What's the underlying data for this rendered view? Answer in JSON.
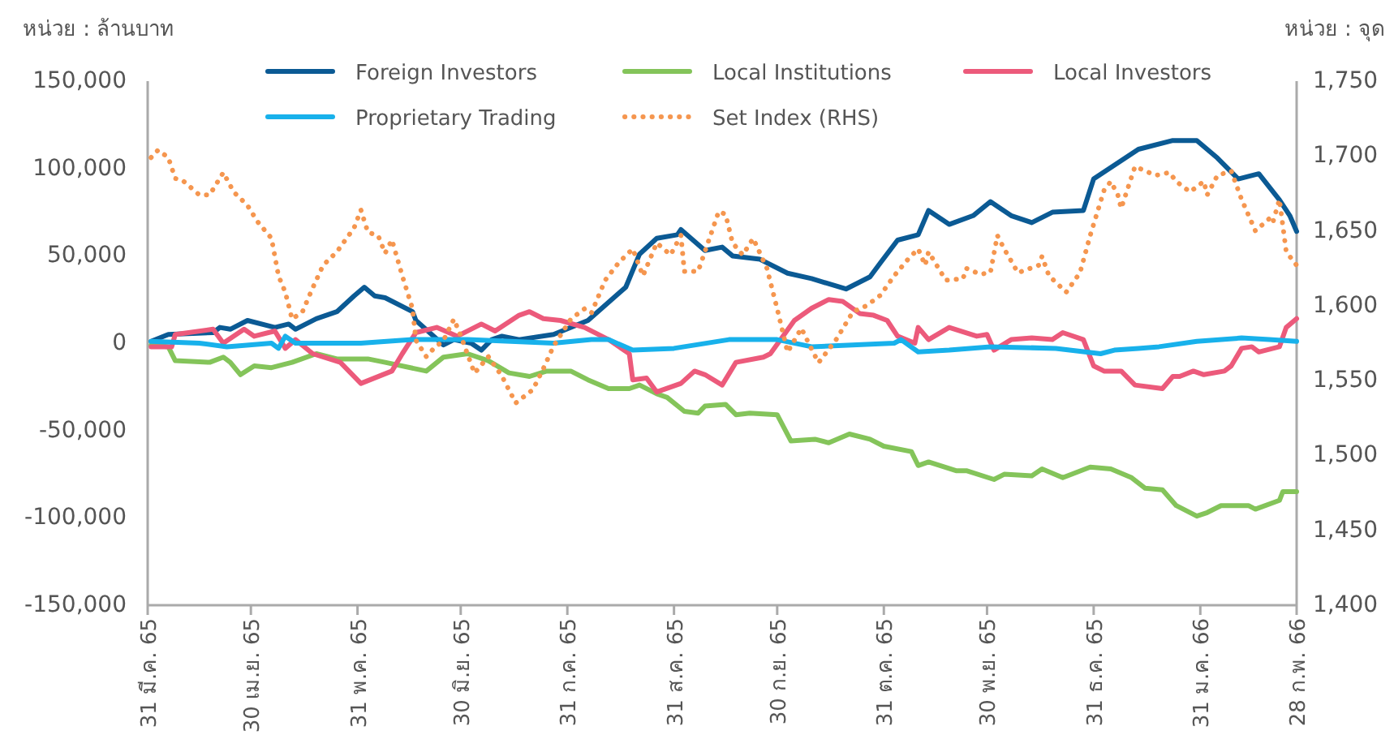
{
  "chart_data": {
    "type": "line",
    "ylabel": "หน่วย : ล้านบาท",
    "y2label": "หน่วย : จุด",
    "legend": "top",
    "marker": "none",
    "grid": false,
    "xlim": [
      "2565-03-31",
      "2566-02-28"
    ],
    "xticks": [
      {
        "value": "2565-03-31",
        "label": "31 มี.ค. 65"
      },
      {
        "value": "2565-04-30",
        "label": "30 เม.ย. 65"
      },
      {
        "value": "2565-05-31",
        "label": "31 พ.ค. 65"
      },
      {
        "value": "2565-06-30",
        "label": "30 มิ.ย. 65"
      },
      {
        "value": "2565-07-31",
        "label": "31 ก.ค. 65"
      },
      {
        "value": "2565-08-31",
        "label": "31 ส.ค. 65"
      },
      {
        "value": "2565-09-30",
        "label": "30 ก.ย. 65"
      },
      {
        "value": "2565-10-31",
        "label": "31 ต.ค. 65"
      },
      {
        "value": "2565-11-30",
        "label": "30 พ.ย. 65"
      },
      {
        "value": "2565-12-31",
        "label": "31 ธ.ค. 65"
      },
      {
        "value": "2566-01-31",
        "label": "31 ม.ค. 66"
      },
      {
        "value": "2566-02-28",
        "label": "28 ก.พ. 66"
      }
    ],
    "ylim": [
      -150000,
      150000
    ],
    "yticks": [
      {
        "value": -150000,
        "label": "-150,000"
      },
      {
        "value": -100000,
        "label": "-100,000"
      },
      {
        "value": -50000,
        "label": "-50,000"
      },
      {
        "value": 0,
        "label": "0"
      },
      {
        "value": 50000,
        "label": "50,000"
      },
      {
        "value": 100000,
        "label": "100,000"
      },
      {
        "value": 150000,
        "label": "150,000"
      }
    ],
    "y2lim": [
      1400,
      1750
    ],
    "y2ticks": [
      {
        "value": 1400,
        "label": "1,400"
      },
      {
        "value": 1450,
        "label": "1,450"
      },
      {
        "value": 1500,
        "label": "1,500"
      },
      {
        "value": 1550,
        "label": "1,550"
      },
      {
        "value": 1600,
        "label": "1,600"
      },
      {
        "value": 1650,
        "label": "1,650"
      },
      {
        "value": 1700,
        "label": "1,700"
      },
      {
        "value": 1750,
        "label": "1,750"
      }
    ],
    "series": [
      {
        "name": "Foreign Investors",
        "color": "#0b5a94",
        "line_style": "solid",
        "x": [
          "2565-04-01",
          "2565-04-06",
          "2565-04-19",
          "2565-04-21",
          "2565-04-24",
          "2565-04-29",
          "2565-05-07",
          "2565-05-11",
          "2565-05-13",
          "2565-05-19",
          "2565-05-25",
          "2565-05-30",
          "2565-06-02",
          "2565-06-05",
          "2565-06-08",
          "2565-06-16",
          "2565-06-17",
          "2565-06-25",
          "2565-06-28",
          "2565-07-03",
          "2565-07-06",
          "2565-07-09",
          "2565-07-12",
          "2565-07-17",
          "2565-07-27",
          "2565-08-06",
          "2565-08-17",
          "2565-08-21",
          "2565-08-26",
          "2565-09-01",
          "2565-09-02",
          "2565-09-09",
          "2565-09-14",
          "2565-09-17",
          "2565-09-25",
          "2565-10-03",
          "2565-10-10",
          "2565-10-20",
          "2565-10-27",
          "2565-10-30",
          "2565-11-04",
          "2565-11-10",
          "2565-11-13",
          "2565-11-19",
          "2565-11-26",
          "2565-12-01",
          "2565-12-07",
          "2565-12-13",
          "2565-12-19",
          "2565-12-28",
          "2565-12-31",
          "2566-01-13",
          "2566-01-23",
          "2566-01-30",
          "2566-02-05",
          "2566-02-11",
          "2566-02-17",
          "2566-02-23",
          "2566-02-26",
          "2566-02-28"
        ],
        "values": [
          1000,
          5000,
          6000,
          9000,
          8000,
          13000,
          9000,
          11000,
          8000,
          14000,
          18000,
          27000,
          32000,
          27000,
          26000,
          18000,
          13000,
          -1000,
          2000,
          0,
          -4000,
          2000,
          4000,
          2000,
          5000,
          13000,
          32000,
          51000,
          60000,
          62000,
          65000,
          53000,
          55000,
          50000,
          48000,
          40000,
          37000,
          31000,
          38000,
          46000,
          59000,
          62000,
          76000,
          68000,
          73000,
          81000,
          73000,
          69000,
          75000,
          76000,
          94000,
          111000,
          116000,
          116000,
          106000,
          94000,
          97000,
          82000,
          73000,
          64000
        ]
      },
      {
        "name": "Local Institutions",
        "color": "#84c45a",
        "line_style": "solid",
        "x": [
          "2565-04-01",
          "2565-04-06",
          "2565-04-08",
          "2565-04-18",
          "2565-04-22",
          "2565-04-24",
          "2565-04-27",
          "2565-05-01",
          "2565-05-06",
          "2565-05-12",
          "2565-05-19",
          "2565-05-25",
          "2565-06-03",
          "2565-06-08",
          "2565-06-20",
          "2565-06-25",
          "2565-07-02",
          "2565-07-08",
          "2565-07-14",
          "2565-07-20",
          "2565-07-25",
          "2565-08-01",
          "2565-08-06",
          "2565-08-12",
          "2565-08-18",
          "2565-08-21",
          "2565-08-26",
          "2565-08-29",
          "2565-09-03",
          "2565-09-07",
          "2565-09-09",
          "2565-09-15",
          "2565-09-18",
          "2565-09-22",
          "2565-09-30",
          "2565-10-04",
          "2565-10-11",
          "2565-10-15",
          "2565-10-21",
          "2565-10-27",
          "2565-10-31",
          "2565-11-08",
          "2565-11-10",
          "2565-11-13",
          "2565-11-21",
          "2565-11-24",
          "2565-12-02",
          "2565-12-05",
          "2565-12-13",
          "2565-12-16",
          "2565-12-22",
          "2565-12-30",
          "2566-01-05",
          "2566-01-11",
          "2566-01-15",
          "2566-01-20",
          "2566-01-24",
          "2566-01-30",
          "2566-02-02",
          "2566-02-06",
          "2566-02-14",
          "2566-02-16",
          "2566-02-23",
          "2566-02-24",
          "2566-02-28"
        ],
        "values": [
          -1000,
          -2000,
          -10000,
          -11000,
          -8000,
          -11000,
          -18000,
          -13000,
          -14000,
          -11000,
          -6000,
          -9000,
          -9000,
          -11000,
          -16000,
          -8000,
          -6000,
          -10000,
          -17000,
          -19000,
          -16000,
          -16000,
          -21000,
          -26000,
          -26000,
          -24000,
          -29000,
          -31000,
          -39000,
          -40000,
          -36000,
          -35000,
          -41000,
          -40000,
          -41000,
          -56000,
          -55000,
          -57000,
          -52000,
          -55000,
          -59000,
          -62000,
          -70000,
          -68000,
          -73000,
          -73000,
          -78000,
          -75000,
          -76000,
          -72000,
          -77000,
          -71000,
          -72000,
          -77000,
          -83000,
          -84000,
          -93000,
          -99000,
          -97000,
          -93000,
          -93000,
          -95000,
          -90000,
          -85000,
          -85000
        ]
      },
      {
        "name": "Local Investors",
        "color": "#ec5a7b",
        "line_style": "solid",
        "x": [
          "2565-04-01",
          "2565-04-07",
          "2565-04-08",
          "2565-04-19",
          "2565-04-22",
          "2565-04-28",
          "2565-05-01",
          "2565-05-07",
          "2565-05-10",
          "2565-05-13",
          "2565-05-18",
          "2565-05-26",
          "2565-06-01",
          "2565-06-10",
          "2565-06-13",
          "2565-06-17",
          "2565-06-23",
          "2565-06-29",
          "2565-07-06",
          "2565-07-10",
          "2565-07-17",
          "2565-07-20",
          "2565-07-24",
          "2565-07-29",
          "2565-08-05",
          "2565-08-12",
          "2565-08-18",
          "2565-08-19",
          "2565-08-23",
          "2565-08-26",
          "2565-09-02",
          "2565-09-06",
          "2565-09-09",
          "2565-09-14",
          "2565-09-18",
          "2565-09-26",
          "2565-09-28",
          "2565-10-05",
          "2565-10-10",
          "2565-10-15",
          "2565-10-19",
          "2565-10-24",
          "2565-10-28",
          "2565-11-01",
          "2565-11-04",
          "2565-11-09",
          "2565-11-10",
          "2565-11-13",
          "2565-11-19",
          "2565-11-27",
          "2565-11-30",
          "2565-12-02",
          "2565-12-07",
          "2565-12-13",
          "2565-12-19",
          "2565-12-22",
          "2565-12-28",
          "2565-12-31",
          "2566-01-03",
          "2566-01-08",
          "2566-01-12",
          "2566-01-20",
          "2566-01-23",
          "2566-01-25",
          "2566-01-29",
          "2566-02-01",
          "2566-02-07",
          "2566-02-09",
          "2566-02-12",
          "2566-02-15",
          "2566-02-17",
          "2566-02-23",
          "2566-02-25",
          "2566-02-28"
        ],
        "values": [
          -2000,
          -2000,
          5000,
          8000,
          0,
          8000,
          4000,
          7000,
          -3000,
          2000,
          -6000,
          -11000,
          -23000,
          -16000,
          -6000,
          6000,
          9000,
          4000,
          11000,
          7000,
          16000,
          18000,
          14000,
          13000,
          9000,
          2000,
          -6000,
          -21000,
          -20000,
          -28000,
          -23000,
          -16000,
          -18000,
          -24000,
          -11000,
          -8000,
          -6000,
          13000,
          20000,
          25000,
          24000,
          17000,
          16000,
          13000,
          4000,
          0,
          9000,
          2000,
          9000,
          4000,
          5000,
          -4000,
          2000,
          3000,
          2000,
          6000,
          2000,
          -13000,
          -16000,
          -16000,
          -24000,
          -26000,
          -19000,
          -19000,
          -16000,
          -18000,
          -16000,
          -13000,
          -3000,
          -2000,
          -5000,
          -2000,
          9000,
          14000
        ]
      },
      {
        "name": "Proprietary Trading",
        "color": "#18b1eb",
        "line_style": "solid",
        "x": [
          "2565-04-01",
          "2565-04-15",
          "2565-04-23",
          "2565-05-06",
          "2565-05-08",
          "2565-05-10",
          "2565-05-13",
          "2565-06-01",
          "2565-06-16",
          "2565-07-02",
          "2565-07-27",
          "2565-08-07",
          "2565-08-12",
          "2565-08-19",
          "2565-08-31",
          "2565-09-16",
          "2565-09-30",
          "2565-10-10",
          "2565-11-03",
          "2565-11-05",
          "2565-11-10",
          "2565-11-19",
          "2565-12-01",
          "2565-12-20",
          "2566-01-02",
          "2566-01-06",
          "2566-01-13",
          "2566-01-19",
          "2566-01-30",
          "2566-02-12",
          "2566-02-20",
          "2566-02-28"
        ],
        "values": [
          1000,
          0,
          -2000,
          0,
          -3000,
          4000,
          0,
          0,
          2000,
          2000,
          0,
          2000,
          2000,
          -4000,
          -3000,
          2000,
          2000,
          -2000,
          0,
          2000,
          -5000,
          -4000,
          -2000,
          -3000,
          -6000,
          -4000,
          -3000,
          -2000,
          1000,
          3000,
          2000,
          1000
        ]
      },
      {
        "name": "Set Index (RHS)",
        "color": "#f5964f",
        "line_style": "dotted",
        "axis": "y2",
        "x": [
          "2565-04-01",
          "2565-04-03",
          "2565-04-06",
          "2565-04-08",
          "2565-04-10",
          "2565-04-15",
          "2565-04-18",
          "2565-04-22",
          "2565-04-25",
          "2565-04-29",
          "2565-05-02",
          "2565-05-06",
          "2565-05-08",
          "2565-05-10",
          "2565-05-12",
          "2565-05-15",
          "2565-05-18",
          "2565-05-21",
          "2565-05-25",
          "2565-05-30",
          "2565-06-01",
          "2565-06-03",
          "2565-06-06",
          "2565-06-08",
          "2565-06-10",
          "2565-06-13",
          "2565-06-16",
          "2565-06-17",
          "2565-06-20",
          "2565-06-22",
          "2565-06-25",
          "2565-06-28",
          "2565-06-30",
          "2565-07-04",
          "2565-07-08",
          "2565-07-12",
          "2565-07-16",
          "2565-07-21",
          "2565-07-24",
          "2565-07-27",
          "2565-08-01",
          "2565-08-05",
          "2565-08-07",
          "2565-08-11",
          "2565-08-15",
          "2565-08-19",
          "2565-08-22",
          "2565-08-26",
          "2565-08-30",
          "2565-09-02",
          "2565-09-03",
          "2565-09-07",
          "2565-09-13",
          "2565-09-15",
          "2565-09-17",
          "2565-09-20",
          "2565-09-23",
          "2565-09-27",
          "2565-09-30",
          "2565-10-03",
          "2565-10-07",
          "2565-10-10",
          "2565-10-12",
          "2565-10-17",
          "2565-10-22",
          "2565-10-26",
          "2565-10-30",
          "2565-11-03",
          "2565-11-07",
          "2565-11-10",
          "2565-11-12",
          "2565-11-13",
          "2565-11-18",
          "2565-11-23",
          "2565-11-24",
          "2565-11-28",
          "2565-12-01",
          "2565-12-03",
          "2565-12-05",
          "2565-12-09",
          "2565-12-15",
          "2565-12-16",
          "2565-12-18",
          "2565-12-23",
          "2565-12-27",
          "2565-12-30",
          "2566-01-03",
          "2566-01-05",
          "2566-01-07",
          "2566-01-08",
          "2566-01-12",
          "2566-01-18",
          "2566-01-22",
          "2566-01-24",
          "2566-01-28",
          "2566-02-01",
          "2566-02-02",
          "2566-02-05",
          "2566-02-09",
          "2566-02-12",
          "2566-02-16",
          "2566-02-20",
          "2566-02-21",
          "2566-02-23",
          "2566-02-25",
          "2566-02-28"
        ],
        "values": [
          1699,
          1704,
          1699,
          1685,
          1684,
          1674,
          1674,
          1689,
          1676,
          1667,
          1656,
          1645,
          1620,
          1609,
          1591,
          1596,
          1612,
          1627,
          1636,
          1652,
          1664,
          1649,
          1647,
          1635,
          1644,
          1620,
          1598,
          1577,
          1566,
          1571,
          1577,
          1591,
          1580,
          1555,
          1566,
          1553,
          1535,
          1544,
          1558,
          1573,
          1591,
          1598,
          1595,
          1617,
          1629,
          1638,
          1620,
          1642,
          1634,
          1647,
          1623,
          1623,
          1663,
          1661,
          1642,
          1634,
          1645,
          1625,
          1598,
          1569,
          1585,
          1571,
          1562,
          1577,
          1596,
          1600,
          1607,
          1620,
          1631,
          1638,
          1627,
          1636,
          1617,
          1618,
          1625,
          1621,
          1622,
          1647,
          1638,
          1622,
          1627,
          1633,
          1620,
          1609,
          1622,
          1647,
          1677,
          1683,
          1674,
          1665,
          1693,
          1687,
          1689,
          1683,
          1676,
          1683,
          1674,
          1687,
          1690,
          1671,
          1650,
          1658,
          1655,
          1671,
          1636,
          1627
        ]
      }
    ]
  }
}
